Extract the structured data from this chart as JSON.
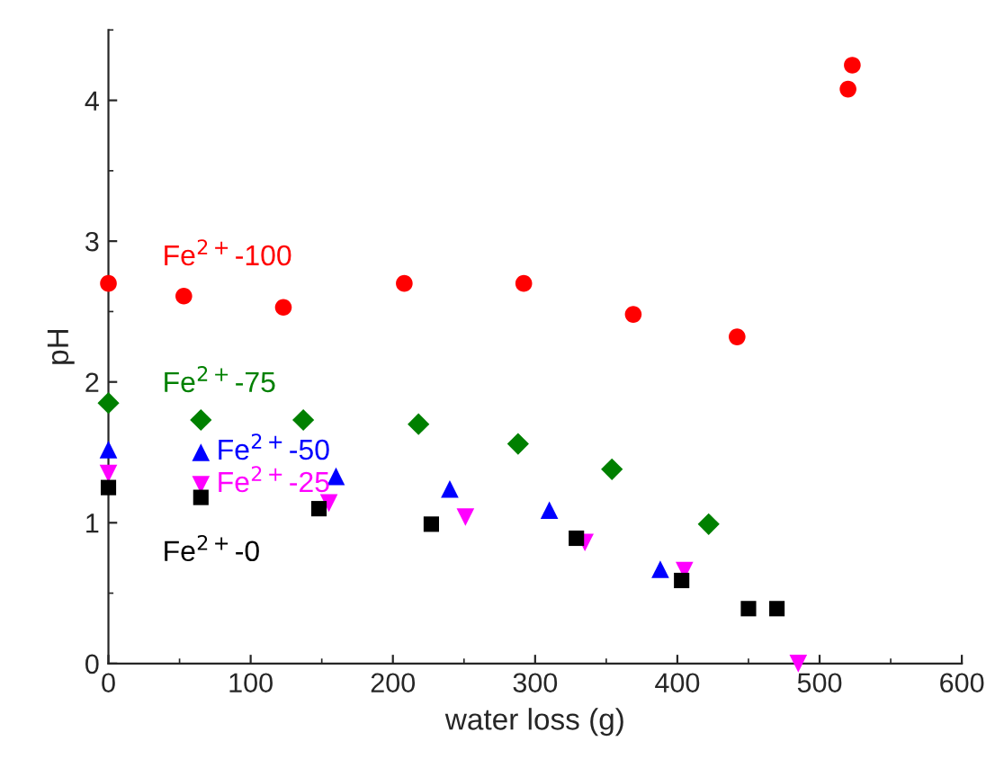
{
  "chart_data": {
    "type": "scatter",
    "xlabel": "water loss (g)",
    "ylabel": "pH",
    "xlim": [
      0,
      600
    ],
    "xticks": [
      0,
      100,
      200,
      300,
      400,
      500,
      600
    ],
    "ylim": [
      0,
      4.5
    ],
    "yticks": [
      0,
      1,
      2,
      3,
      4
    ],
    "grid": false,
    "legend": false,
    "series": [
      {
        "name": "Fe$^{2+}$-100",
        "color": "#ff0000",
        "marker": "circle",
        "x": [
          0,
          53,
          123,
          208,
          292,
          369,
          442,
          520,
          523
        ],
        "values": [
          2.7,
          2.61,
          2.53,
          2.7,
          2.7,
          2.48,
          2.32,
          4.08,
          4.25
        ]
      },
      {
        "name": "Fe$^{2+}$-75",
        "color": "#008000",
        "marker": "diamond",
        "x": [
          0,
          65,
          137,
          218,
          288,
          354,
          422
        ],
        "values": [
          1.85,
          1.73,
          1.73,
          1.7,
          1.56,
          1.38,
          0.99
        ]
      },
      {
        "name": "Fe$^{2+}$-50",
        "color": "#0000ff",
        "marker": "triangle",
        "x": [
          0,
          65,
          160,
          240,
          310,
          388
        ],
        "values": [
          1.52,
          1.5,
          1.33,
          1.24,
          1.09,
          0.67
        ]
      },
      {
        "name": "Fe$^{2+}$-25",
        "color": "#ff00ff",
        "marker": "triangle_down",
        "x": [
          0,
          65,
          155,
          251,
          335,
          405,
          485
        ],
        "values": [
          1.35,
          1.27,
          1.14,
          1.04,
          0.86,
          0.66,
          0
        ]
      },
      {
        "name": "Fe$^{2+}$-0",
        "color": "#000000",
        "marker": "square",
        "x": [
          0,
          65,
          148,
          227,
          329,
          403,
          450,
          470
        ],
        "values": [
          1.25,
          1.18,
          1.1,
          0.99,
          0.89,
          0.59,
          0.39,
          0.39
        ]
      }
    ]
  }
}
